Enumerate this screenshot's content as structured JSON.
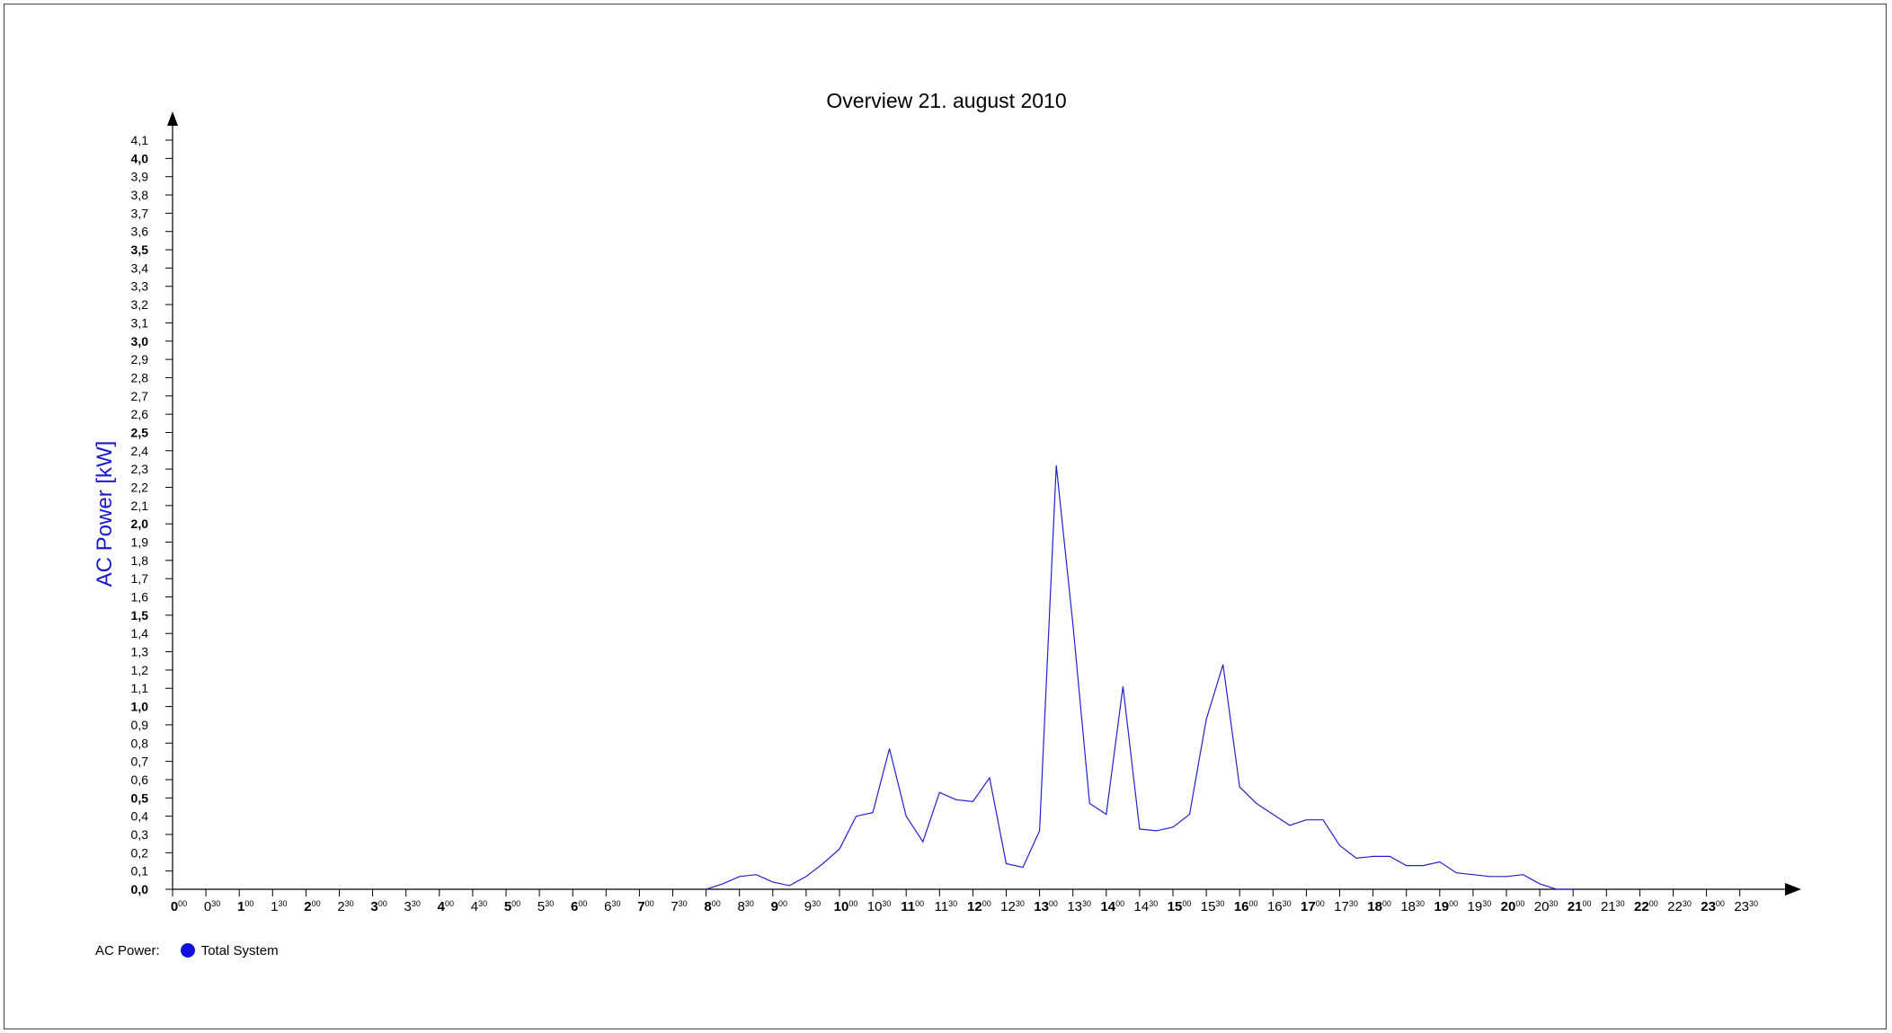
{
  "colors": {
    "series": "#2222cc",
    "ylabel": "#1a1acc",
    "legend_dot": "#1111dd"
  },
  "chart_data": {
    "type": "line",
    "title": "Overview 21. august 2010",
    "ylabel": "AC Power [kW]",
    "xlabel": "",
    "ylim": [
      0,
      4.1
    ],
    "y_ticks": [
      "0,0",
      "0,1",
      "0,2",
      "0,3",
      "0,4",
      "0,5",
      "0,6",
      "0,7",
      "0,8",
      "0,9",
      "1,0",
      "1,1",
      "1,2",
      "1,3",
      "1,4",
      "1,5",
      "1,6",
      "1,7",
      "1,8",
      "1,9",
      "2,0",
      "2,1",
      "2,2",
      "2,3",
      "2,4",
      "2,5",
      "2,6",
      "2,7",
      "2,8",
      "2,9",
      "3,0",
      "3,1",
      "3,2",
      "3,3",
      "3,4",
      "3,5",
      "3,6",
      "3,7",
      "3,8",
      "3,9",
      "4,0",
      "4,1"
    ],
    "x_tick_hours": [
      "0",
      "0",
      "1",
      "1",
      "2",
      "2",
      "3",
      "3",
      "4",
      "4",
      "5",
      "5",
      "6",
      "6",
      "7",
      "7",
      "8",
      "8",
      "9",
      "9",
      "10",
      "10",
      "11",
      "11",
      "12",
      "12",
      "13",
      "13",
      "14",
      "14",
      "15",
      "15",
      "16",
      "16",
      "17",
      "17",
      "18",
      "18",
      "19",
      "19",
      "20",
      "20",
      "21",
      "21",
      "22",
      "22",
      "23",
      "23"
    ],
    "x_tick_minutes": [
      "00",
      "30",
      "00",
      "30",
      "00",
      "30",
      "00",
      "30",
      "00",
      "30",
      "00",
      "30",
      "00",
      "30",
      "00",
      "30",
      "00",
      "30",
      "00",
      "30",
      "00",
      "30",
      "00",
      "30",
      "00",
      "30",
      "00",
      "30",
      "00",
      "30",
      "00",
      "30",
      "00",
      "30",
      "00",
      "30",
      "00",
      "30",
      "00",
      "30",
      "00",
      "30",
      "00",
      "30",
      "00",
      "30",
      "00",
      "30"
    ],
    "series": [
      {
        "name": "Total System",
        "x": [
          "8:00",
          "8:15",
          "8:30",
          "8:45",
          "9:00",
          "9:15",
          "9:30",
          "9:45",
          "10:00",
          "10:15",
          "10:30",
          "10:45",
          "11:00",
          "11:15",
          "11:30",
          "11:45",
          "12:00",
          "12:15",
          "12:30",
          "12:45",
          "13:00",
          "13:15",
          "13:30",
          "13:45",
          "14:00",
          "14:15",
          "14:30",
          "14:45",
          "15:00",
          "15:15",
          "15:30",
          "15:45",
          "16:00",
          "16:15",
          "16:30",
          "16:45",
          "17:00",
          "17:15",
          "17:30",
          "17:45",
          "18:00",
          "18:15",
          "18:30",
          "18:45",
          "19:00",
          "19:15",
          "19:30",
          "19:45",
          "20:00",
          "20:15",
          "20:30",
          "20:45",
          "21:00"
        ],
        "values": [
          0.0,
          0.03,
          0.07,
          0.08,
          0.04,
          0.02,
          0.07,
          0.14,
          0.22,
          0.4,
          0.42,
          0.77,
          0.4,
          0.26,
          0.53,
          0.49,
          0.48,
          0.61,
          0.14,
          0.12,
          0.32,
          2.32,
          1.45,
          0.47,
          0.41,
          1.11,
          0.33,
          0.32,
          0.34,
          0.41,
          0.93,
          1.23,
          0.56,
          0.47,
          0.41,
          0.35,
          0.38,
          0.38,
          0.24,
          0.17,
          0.18,
          0.18,
          0.13,
          0.13,
          0.15,
          0.09,
          0.08,
          0.07,
          0.07,
          0.08,
          0.03,
          0.0,
          0.0
        ]
      }
    ]
  },
  "legend": {
    "label": "AC Power:",
    "series_name": "Total System"
  }
}
